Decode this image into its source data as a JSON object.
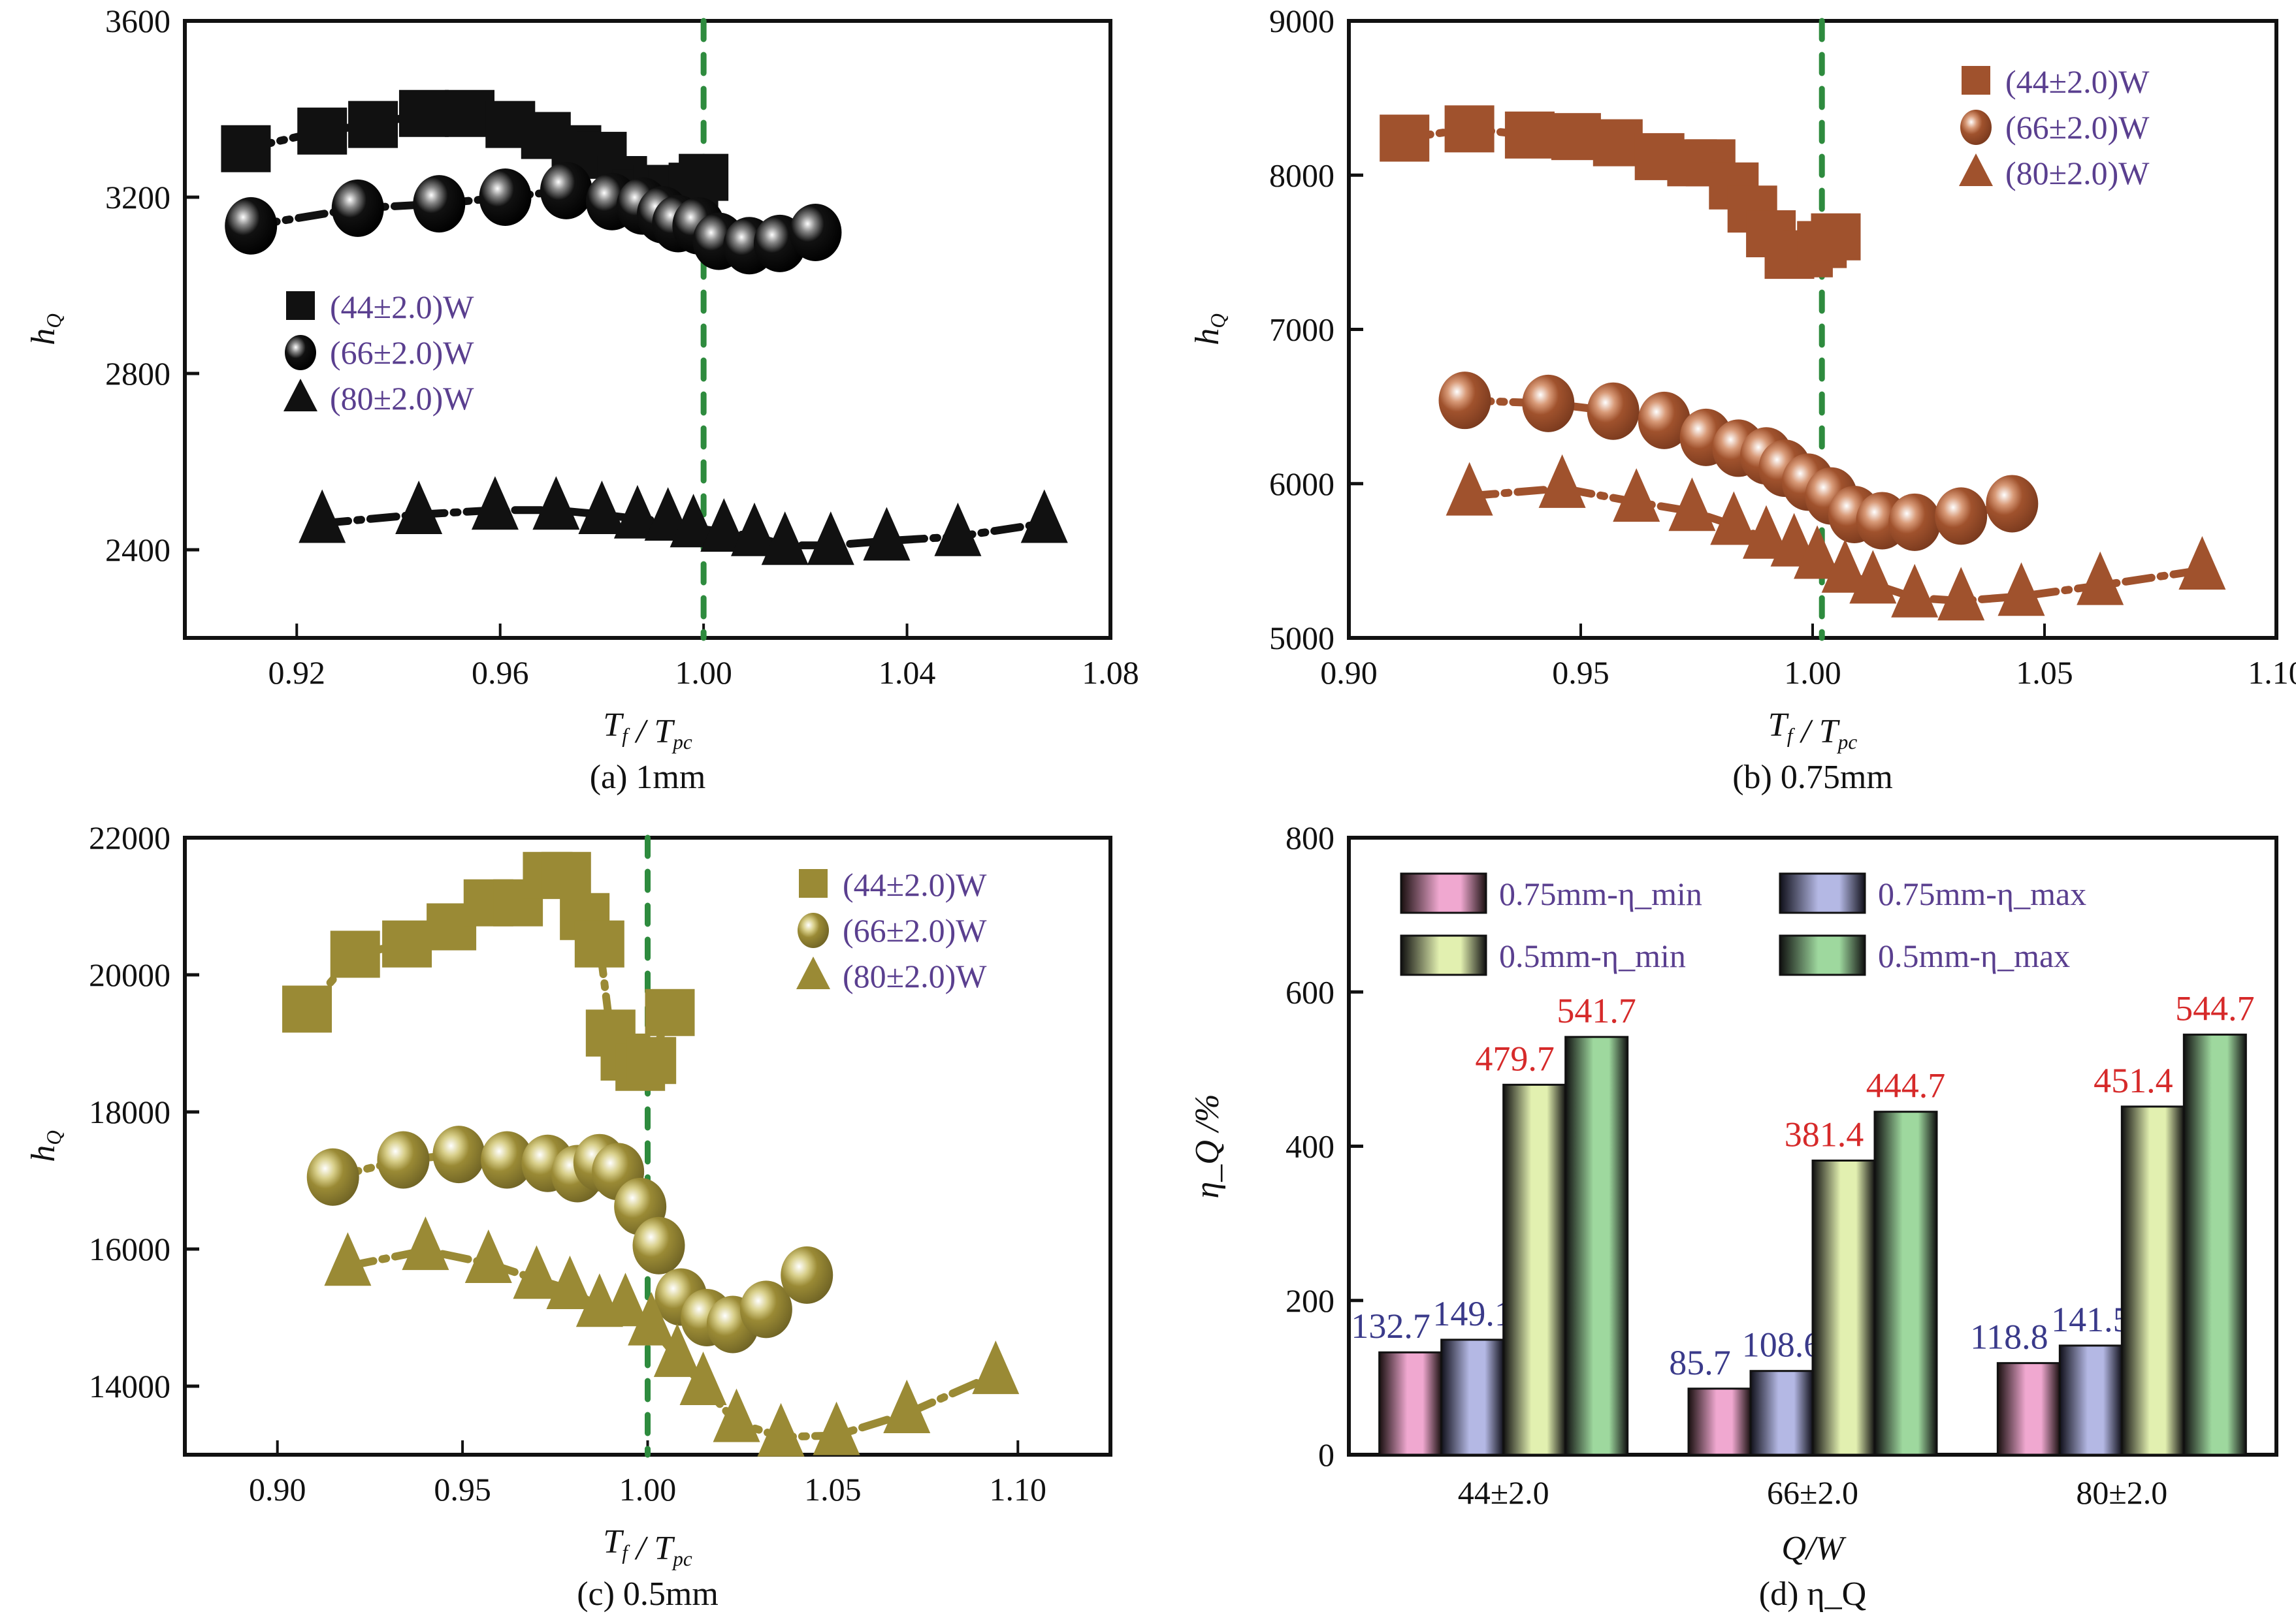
{
  "chart_data": [
    {
      "id": "a",
      "type": "line",
      "caption": "(a) 1mm",
      "xlabel": "T_f / T_pc",
      "ylabel": "h_Q",
      "xlim": [
        0.898,
        1.08
      ],
      "ylim": [
        2200,
        3600
      ],
      "xticks": [
        "0.92",
        "0.96",
        "1.00",
        "1.04",
        "1.08"
      ],
      "xtick_values": [
        0.92,
        0.96,
        1.0,
        1.04,
        1.08
      ],
      "yticks": [
        "2400",
        "2800",
        "3200",
        "3600"
      ],
      "ytick_values": [
        2400,
        2800,
        3200,
        3600
      ],
      "reference_line_x": 1.0,
      "color": "#111111",
      "legend_position": "center-left",
      "series": [
        {
          "name": "(44±2.0)W",
          "marker": "square",
          "x": [
            0.91,
            0.925,
            0.935,
            0.945,
            0.954,
            0.962,
            0.969,
            0.975,
            0.98,
            0.984,
            0.987,
            0.991,
            0.994,
            0.998,
            1.0
          ],
          "y": [
            3310,
            3350,
            3365,
            3390,
            3390,
            3365,
            3340,
            3310,
            3295,
            3240,
            3210,
            3220,
            3220,
            3225,
            3245
          ]
        },
        {
          "name": "(66±2.0)W",
          "marker": "sphere",
          "x": [
            0.911,
            0.932,
            0.948,
            0.961,
            0.973,
            0.982,
            0.988,
            0.992,
            0.995,
            0.999,
            1.003,
            1.009,
            1.015,
            1.022
          ],
          "y": [
            3135,
            3175,
            3185,
            3200,
            3215,
            3190,
            3180,
            3160,
            3140,
            3135,
            3100,
            3090,
            3095,
            3120
          ]
        },
        {
          "name": "(80±2.0)W",
          "marker": "triangle",
          "x": [
            0.925,
            0.944,
            0.959,
            0.971,
            0.98,
            0.987,
            0.993,
            0.998,
            1.004,
            1.01,
            1.016,
            1.025,
            1.036,
            1.05,
            1.067
          ],
          "y": [
            2460,
            2480,
            2490,
            2490,
            2480,
            2470,
            2465,
            2450,
            2440,
            2430,
            2410,
            2410,
            2420,
            2430,
            2460
          ]
        }
      ]
    },
    {
      "id": "b",
      "type": "line",
      "caption": "(b) 0.75mm",
      "xlabel": "T_f / T_pc",
      "ylabel": "h_Q",
      "xlim": [
        0.9,
        1.1
      ],
      "ylim": [
        5000,
        9000
      ],
      "xticks": [
        "0.90",
        "0.95",
        "1.00",
        "1.05",
        "1.10"
      ],
      "xtick_values": [
        0.9,
        0.95,
        1.0,
        1.05,
        1.1
      ],
      "yticks": [
        "5000",
        "6000",
        "7000",
        "8000",
        "9000"
      ],
      "ytick_values": [
        5000,
        6000,
        7000,
        8000,
        9000
      ],
      "reference_line_x": 1.002,
      "color": "#a0522d",
      "legend_position": "top-right",
      "series": [
        {
          "name": "(44±2.0)W",
          "marker": "square",
          "x": [
            0.912,
            0.926,
            0.939,
            0.949,
            0.958,
            0.967,
            0.974,
            0.978,
            0.983,
            0.987,
            0.991,
            0.995,
            0.999,
            1.002,
            1.005
          ],
          "y": [
            8240,
            8300,
            8260,
            8250,
            8210,
            8120,
            8080,
            8080,
            7930,
            7780,
            7620,
            7480,
            7490,
            7550,
            7600
          ]
        },
        {
          "name": "(66±2.0)W",
          "marker": "sphere",
          "x": [
            0.925,
            0.943,
            0.957,
            0.968,
            0.977,
            0.984,
            0.99,
            0.994,
            0.999,
            1.004,
            1.009,
            1.015,
            1.022,
            1.032,
            1.043
          ],
          "y": [
            6540,
            6520,
            6470,
            6410,
            6300,
            6230,
            6180,
            6100,
            6010,
            5920,
            5800,
            5760,
            5750,
            5790,
            5870
          ]
        },
        {
          "name": "(80±2.0)W",
          "marker": "triangle",
          "x": [
            0.926,
            0.946,
            0.962,
            0.974,
            0.983,
            0.99,
            0.996,
            1.001,
            1.007,
            1.013,
            1.022,
            1.032,
            1.045,
            1.062,
            1.084
          ],
          "y": [
            5920,
            5970,
            5880,
            5820,
            5730,
            5640,
            5590,
            5510,
            5420,
            5350,
            5260,
            5240,
            5270,
            5340,
            5440
          ]
        }
      ]
    },
    {
      "id": "c",
      "type": "line",
      "caption": "(c) 0.5mm",
      "xlabel": "T_f / T_pc",
      "ylabel": "h_Q",
      "xlim": [
        0.875,
        1.125
      ],
      "ylim": [
        13000,
        22000
      ],
      "xticks": [
        "0.90",
        "0.95",
        "1.00",
        "1.05",
        "1.10"
      ],
      "xtick_values": [
        0.9,
        0.95,
        1.0,
        1.05,
        1.1
      ],
      "yticks": [
        "14000",
        "16000",
        "18000",
        "20000",
        "22000"
      ],
      "ytick_values": [
        14000,
        16000,
        18000,
        20000,
        22000
      ],
      "reference_line_x": 1.0,
      "color": "#9a8a35",
      "legend_position": "top-right",
      "series": [
        {
          "name": "(44±2.0)W",
          "marker": "square",
          "x": [
            0.908,
            0.921,
            0.935,
            0.947,
            0.957,
            0.965,
            0.973,
            0.978,
            0.983,
            0.987,
            0.99,
            0.994,
            0.998,
            1.001,
            1.006
          ],
          "y": [
            19500,
            20300,
            20450,
            20700,
            21050,
            21050,
            21450,
            21450,
            20850,
            20450,
            19150,
            18800,
            18650,
            18750,
            19450
          ]
        },
        {
          "name": "(66±2.0)W",
          "marker": "sphere",
          "x": [
            0.915,
            0.934,
            0.949,
            0.962,
            0.973,
            0.981,
            0.987,
            0.992,
            0.998,
            1.003,
            1.009,
            1.016,
            1.023,
            1.032,
            1.043
          ],
          "y": [
            17050,
            17300,
            17380,
            17300,
            17250,
            17100,
            17260,
            17130,
            16620,
            16050,
            15300,
            15000,
            14900,
            15120,
            15620
          ]
        },
        {
          "name": "(80±2.0)W",
          "marker": "triangle",
          "x": [
            0.919,
            0.94,
            0.957,
            0.97,
            0.979,
            0.987,
            0.994,
            1.001,
            1.008,
            1.015,
            1.024,
            1.036,
            1.051,
            1.07,
            1.094
          ],
          "y": [
            15750,
            15980,
            15790,
            15560,
            15410,
            15150,
            15160,
            14880,
            14420,
            14010,
            13470,
            13260,
            13280,
            13600,
            14170
          ]
        }
      ]
    },
    {
      "id": "d",
      "type": "bar",
      "caption": "(d) η_Q",
      "xlabel": "Q/W",
      "ylabel": "η_Q /%",
      "ylim": [
        0,
        800
      ],
      "yticks": [
        "0",
        "200",
        "400",
        "600",
        "800"
      ],
      "ytick_values": [
        0,
        200,
        400,
        600,
        800
      ],
      "categories": [
        "44±2.0",
        "66±2.0",
        "80±2.0"
      ],
      "legend_position": "top",
      "series": [
        {
          "name": "0.75mm-η_min",
          "color": "#f0a8d0",
          "label_color": "#3a3a8a",
          "values": [
            132.7,
            85.7,
            118.8
          ]
        },
        {
          "name": "0.75mm-η_max",
          "color": "#b4b8e4",
          "label_color": "#3a3a8a",
          "values": [
            149.1,
            108.6,
            141.5
          ]
        },
        {
          "name": "0.5mm-η_min",
          "color": "#e2f0b0",
          "label_color": "#d62a2a",
          "values": [
            479.7,
            381.4,
            451.4
          ]
        },
        {
          "name": "0.5mm-η_max",
          "color": "#9ed89e",
          "label_color": "#d62a2a",
          "values": [
            541.7,
            444.7,
            544.7
          ]
        }
      ]
    }
  ]
}
